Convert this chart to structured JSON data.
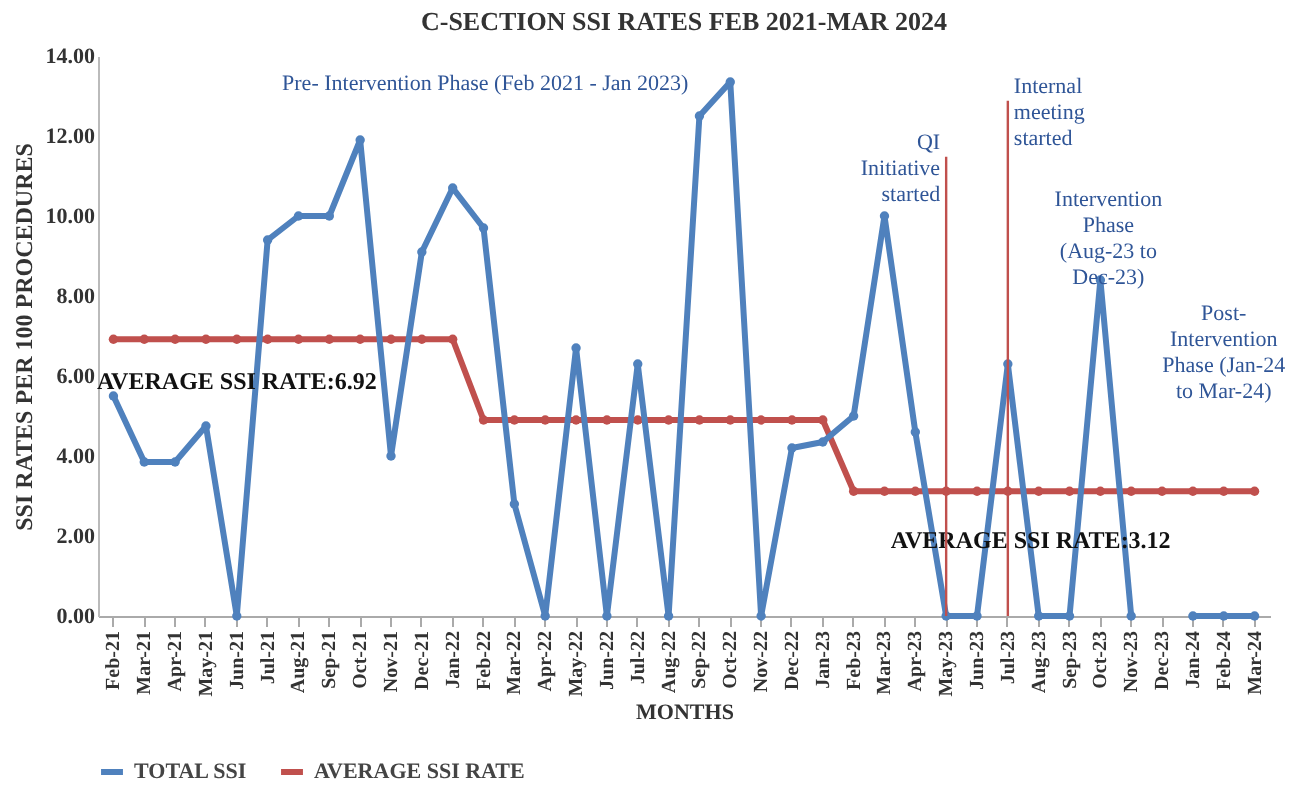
{
  "chart_data": {
    "type": "line",
    "title": "C-SECTION SSI RATES FEB 2021-MAR 2024",
    "xlabel": "MONTHS",
    "ylabel": "SSI RATES PER 100 PROCEDURES",
    "categories": [
      "Feb-21",
      "Mar-21",
      "Apr-21",
      "May-21",
      "Jun-21",
      "Jul-21",
      "Aug-21",
      "Sep-21",
      "Oct-21",
      "Nov-21",
      "Dec-21",
      "Jan-22",
      "Feb-22",
      "Mar-22",
      "Apr-22",
      "May-22",
      "Jun-22",
      "Jul-22",
      "Aug-22",
      "Sep-22",
      "Oct-22",
      "Nov-22",
      "Dec-22",
      "Jan-23",
      "Feb-23",
      "Mar-23",
      "Apr-23",
      "May-23",
      "Jun-23",
      "Jul-23",
      "Aug-23",
      "Sep-23",
      "Oct-23",
      "Nov-23",
      "Dec-23",
      "Jan-24",
      "Feb-24",
      "Mar-24"
    ],
    "series": [
      {
        "name": "TOTAL SSI",
        "color": "#4f81bd",
        "values": [
          5.5,
          3.85,
          3.85,
          4.75,
          0,
          9.4,
          10.0,
          10.0,
          11.9,
          4.0,
          9.1,
          10.7,
          9.7,
          2.8,
          0,
          6.7,
          0,
          6.3,
          0,
          12.5,
          13.35,
          0,
          4.2,
          4.35,
          5.0,
          10.0,
          4.6,
          0,
          0,
          6.3,
          0,
          0,
          8.4,
          0,
          null,
          0,
          0,
          0
        ]
      },
      {
        "name": "AVERAGE SSI RATE",
        "color": "#c0504d",
        "values": [
          6.92,
          6.92,
          6.92,
          6.92,
          6.92,
          6.92,
          6.92,
          6.92,
          6.92,
          6.92,
          6.92,
          6.92,
          4.9,
          4.9,
          4.9,
          4.9,
          4.9,
          4.9,
          4.9,
          4.9,
          4.9,
          4.9,
          4.9,
          4.9,
          3.12,
          3.12,
          3.12,
          3.12,
          3.12,
          3.12,
          3.12,
          3.12,
          3.12,
          3.12,
          3.12,
          3.12,
          3.12,
          3.12
        ]
      }
    ],
    "ylim": [
      0,
      14
    ],
    "yticks": [
      {
        "value": 0,
        "label": "0.00"
      },
      {
        "value": 2,
        "label": "2.00"
      },
      {
        "value": 4,
        "label": "4.00"
      },
      {
        "value": 6,
        "label": "6.00"
      },
      {
        "value": 8,
        "label": "8.00"
      },
      {
        "value": 10,
        "label": "10.00"
      },
      {
        "value": 12,
        "label": "12.00"
      },
      {
        "value": 14,
        "label": "14.00"
      }
    ],
    "ref_lines": [
      {
        "axis": "x",
        "value": "May-23",
        "label": "QI\nInitiative\nstarted",
        "color": "#c0504d"
      },
      {
        "axis": "x",
        "value": "Jul-23",
        "label": "Internal\nmeeting\nstarted",
        "color": "#c0504d"
      }
    ],
    "annotations": [
      "AVERAGE SSI RATE:6.92",
      "AVERAGE SSI RATE:3.12",
      "Pre- Intervention Phase (Feb 2021 - Jan 2023)",
      "Intervention\nPhase\n(Aug-23 to\nDec-23)",
      "Post-\nIntervention\nPhase  (Jan-24\nto Mar-24)"
    ],
    "grid": false,
    "legend": "bottom",
    "marker": "circle",
    "line_style": "solid"
  }
}
